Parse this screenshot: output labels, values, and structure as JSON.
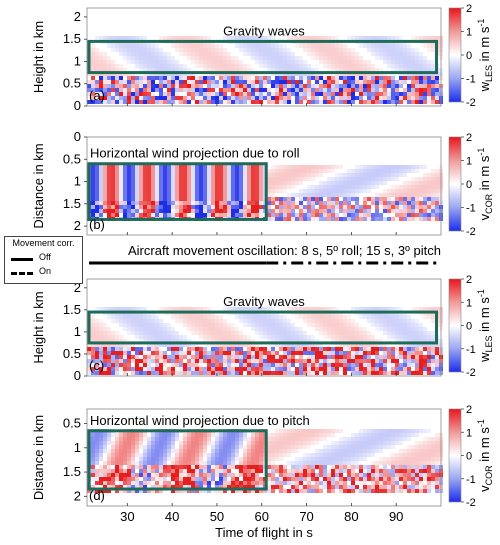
{
  "chart_data": [
    {
      "type": "heatmap",
      "panel_label": "(a)",
      "annotation": "Gravity waves",
      "ylabel": "Height in km",
      "y_ticks": [
        "0",
        "0.5",
        "1",
        "1.5",
        "2"
      ],
      "ylim": [
        0,
        2.2
      ],
      "xlim": [
        21,
        100
      ],
      "highlight_box": {
        "x": [
          21,
          99
        ],
        "y": [
          0.75,
          1.45
        ]
      },
      "colorbar": {
        "label_main": "w",
        "label_sub": "LES",
        "label_unit": " in m s",
        "label_sup": "-1",
        "ticks": [
          "2",
          "1",
          "0",
          "-1",
          "-2"
        ],
        "range": [
          -2,
          2
        ]
      }
    },
    {
      "type": "heatmap",
      "panel_label": "(b)",
      "annotation": "Horizontal wind projection due to roll",
      "ylabel": "Distance in km",
      "y_ticks": [
        "0",
        "0.5",
        "1",
        "1.5",
        "2"
      ],
      "ylim": [
        2.2,
        0
      ],
      "xlim": [
        21,
        100
      ],
      "highlight_box": {
        "x": [
          21,
          61
        ],
        "y": [
          0.6,
          1.85
        ]
      },
      "colorbar": {
        "label_main": "v",
        "label_sub": "COR",
        "label_unit": " in m s",
        "label_sup": "-1",
        "ticks": [
          "2",
          "1",
          "0",
          "-1",
          "-2"
        ],
        "range": [
          -2,
          2
        ]
      }
    },
    {
      "type": "heatmap",
      "panel_label": "(c)",
      "annotation": "Gravity waves",
      "ylabel": "Height in km",
      "y_ticks": [
        "0",
        "0.5",
        "1",
        "1.5",
        "2"
      ],
      "ylim": [
        0,
        2.2
      ],
      "xlim": [
        21,
        100
      ],
      "highlight_box": {
        "x": [
          21,
          99
        ],
        "y": [
          0.75,
          1.45
        ]
      },
      "colorbar": {
        "label_main": "w",
        "label_sub": "LES",
        "label_unit": " in m s",
        "label_sup": "-1",
        "ticks": [
          "2",
          "1",
          "0",
          "-1",
          "-2"
        ],
        "range": [
          -2,
          2
        ]
      }
    },
    {
      "type": "heatmap",
      "panel_label": "(d)",
      "annotation": "Horizontal wind projection due to pitch",
      "ylabel": "Distance in km",
      "y_ticks": [
        "0.5",
        "1",
        "1.5",
        "2"
      ],
      "ylim": [
        2.2,
        0.2
      ],
      "xlim": [
        21,
        100
      ],
      "xlabel": "Time of flight in s",
      "x_ticks": [
        30,
        40,
        50,
        60,
        70,
        80,
        90
      ],
      "highlight_box": {
        "x": [
          21,
          61
        ],
        "y": [
          0.65,
          1.85
        ]
      },
      "colorbar": {
        "label_main": "v",
        "label_sub": "COR",
        "label_unit": " in m s",
        "label_sup": "-1",
        "ticks": [
          "2",
          "1",
          "0",
          "-1",
          "-2"
        ],
        "range": [
          -2,
          2
        ]
      }
    }
  ],
  "oscillation_title": "Aircraft movement oscillation: 8 s, 5º roll; 15 s, 3º pitch",
  "oscillation_line": {
    "solid_x": [
      21,
      61
    ],
    "dashdot_x": [
      61,
      99
    ]
  },
  "legend": {
    "title": "Movement corr.",
    "items": [
      "Off",
      "On"
    ]
  },
  "colors": {
    "box": "#1f6b5a",
    "positive": "#e01a1a",
    "negative": "#1a2ee0"
  }
}
